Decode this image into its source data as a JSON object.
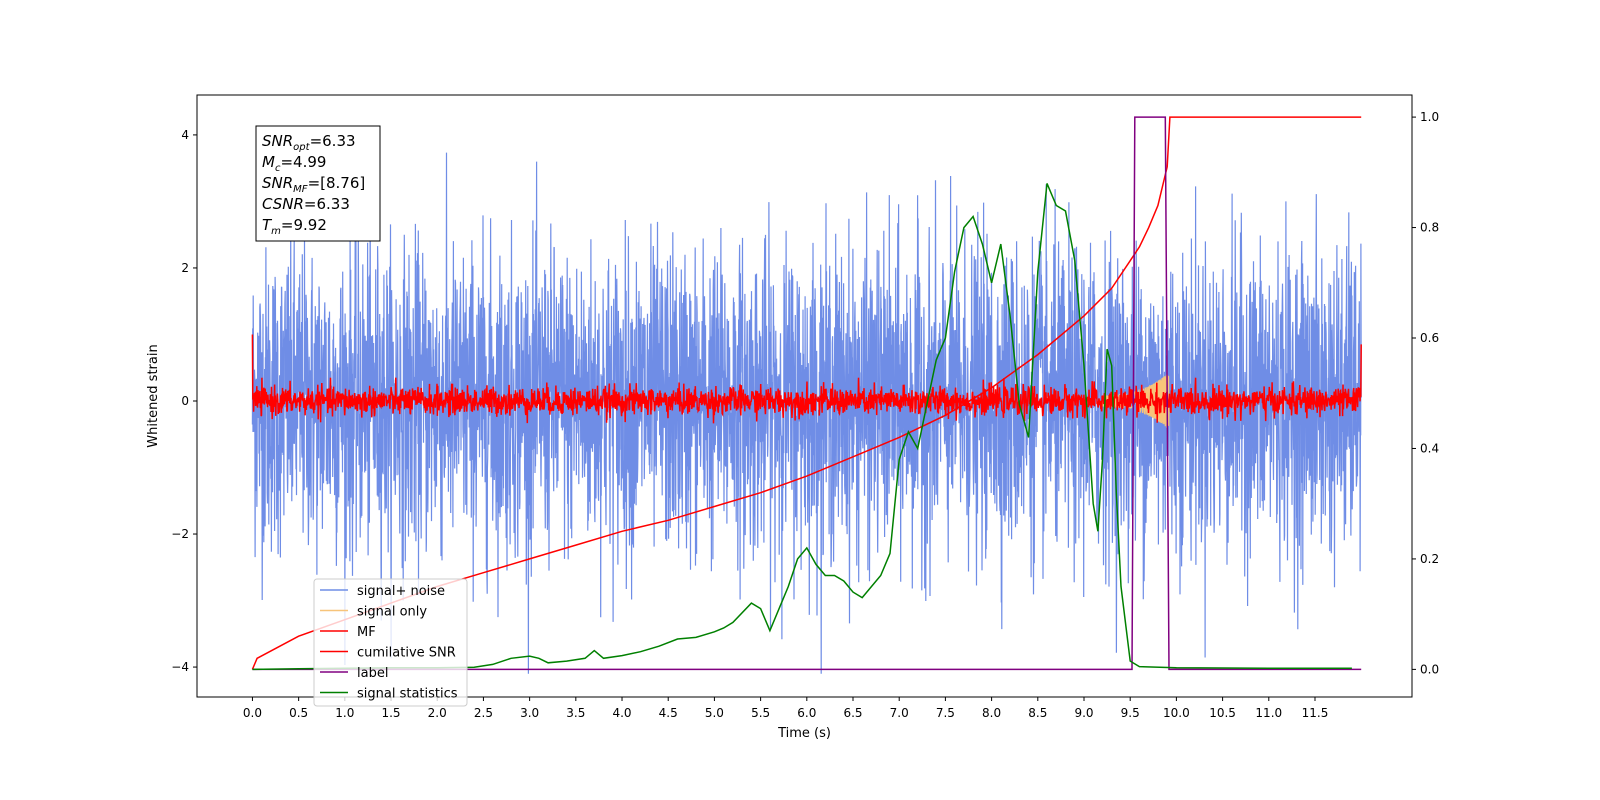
{
  "chart_data": {
    "type": "line",
    "title": "",
    "xlabel": "Time (s)",
    "ylabel": "Whitened strain",
    "ylabel_right": "",
    "xlim": [
      -0.6,
      12.55
    ],
    "ylim": [
      -4.45,
      4.6
    ],
    "ylim_right": [
      -0.05,
      1.04
    ],
    "x_ticks": [
      "0.0",
      "0.5",
      "1.0",
      "1.5",
      "2.0",
      "2.5",
      "3.0",
      "3.5",
      "4.0",
      "4.5",
      "5.0",
      "5.5",
      "6.0",
      "6.5",
      "7.0",
      "7.5",
      "8.0",
      "8.5",
      "9.0",
      "9.5",
      "10.0",
      "10.5",
      "11.0",
      "11.5"
    ],
    "y_ticks": [
      "4",
      "2",
      "0",
      "−2",
      "−4"
    ],
    "y_ticks_right": [
      "1.0",
      "0.8",
      "0.6",
      "0.4",
      "0.2",
      "0.0"
    ],
    "legend_position": "lower-left",
    "grid": false,
    "info_box": {
      "lines": [
        {
          "name": "SNR",
          "sub": "opt",
          "value": "=6.33"
        },
        {
          "name": "M",
          "sub": "c",
          "value": "=4.99"
        },
        {
          "name": "SNR",
          "sub": "MF",
          "value": "=[8.76]"
        },
        {
          "name": "CSNR",
          "sub": "",
          "value": "=6.33"
        },
        {
          "name": "T",
          "sub": "m",
          "value": "=9.92"
        }
      ]
    },
    "series": [
      {
        "name": "signal+ noise",
        "color": "#6f8de6",
        "axis": "left",
        "kind": "noise",
        "amplitude_typical": 1.2,
        "amplitude_peak": 4.1,
        "x_range": [
          0.0,
          12.0
        ]
      },
      {
        "name": "signal only",
        "color": "#f7c47a",
        "axis": "left",
        "kind": "chirp",
        "x_range": [
          9.2,
          9.92
        ],
        "peak_amplitude": 0.35
      },
      {
        "name": "MF",
        "color": "#ff0000",
        "axis": "left",
        "kind": "noise",
        "amplitude_typical": 0.12,
        "amplitude_peak": 0.35,
        "x_range": [
          0.0,
          12.0
        ],
        "endpoints": [
          1.0,
          0.85
        ]
      },
      {
        "name": "cumilative SNR",
        "color": "#ff0000",
        "axis": "right",
        "x": [
          0.0,
          0.05,
          0.5,
          1.0,
          1.5,
          2.0,
          2.5,
          3.0,
          3.5,
          4.0,
          4.5,
          5.0,
          5.5,
          6.0,
          6.5,
          7.0,
          7.5,
          8.0,
          8.5,
          9.0,
          9.3,
          9.5,
          9.6,
          9.7,
          9.8,
          9.9,
          9.93,
          12.0
        ],
        "values": [
          0.0,
          0.02,
          0.06,
          0.09,
          0.12,
          0.15,
          0.175,
          0.2,
          0.225,
          0.25,
          0.27,
          0.295,
          0.32,
          0.35,
          0.385,
          0.42,
          0.46,
          0.51,
          0.57,
          0.64,
          0.69,
          0.74,
          0.765,
          0.8,
          0.84,
          0.91,
          1.0,
          1.0
        ]
      },
      {
        "name": "label",
        "color": "#800080",
        "axis": "right",
        "x": [
          0.0,
          9.52,
          9.55,
          9.88,
          9.92,
          12.0
        ],
        "values": [
          0.0,
          0.0,
          1.0,
          1.0,
          0.0,
          0.0
        ]
      },
      {
        "name": "signal statistics",
        "color": "#008000",
        "axis": "right",
        "x": [
          0.0,
          0.5,
          1.0,
          1.5,
          2.0,
          2.4,
          2.6,
          2.8,
          3.0,
          3.1,
          3.2,
          3.4,
          3.6,
          3.7,
          3.8,
          4.0,
          4.2,
          4.4,
          4.6,
          4.8,
          5.0,
          5.1,
          5.2,
          5.4,
          5.5,
          5.6,
          5.8,
          5.9,
          6.0,
          6.1,
          6.2,
          6.3,
          6.4,
          6.5,
          6.6,
          6.8,
          6.9,
          7.0,
          7.1,
          7.2,
          7.3,
          7.4,
          7.5,
          7.6,
          7.7,
          7.8,
          7.9,
          8.0,
          8.1,
          8.2,
          8.3,
          8.4,
          8.5,
          8.6,
          8.7,
          8.8,
          8.9,
          9.0,
          9.1,
          9.15,
          9.2,
          9.25,
          9.3,
          9.35,
          9.4,
          9.5,
          9.6,
          10.0,
          11.0,
          11.9
        ],
        "values": [
          0.0,
          0.001,
          0.002,
          0.003,
          0.003,
          0.004,
          0.009,
          0.02,
          0.024,
          0.02,
          0.012,
          0.015,
          0.02,
          0.034,
          0.02,
          0.025,
          0.032,
          0.042,
          0.055,
          0.058,
          0.068,
          0.075,
          0.085,
          0.12,
          0.11,
          0.07,
          0.15,
          0.2,
          0.22,
          0.19,
          0.17,
          0.17,
          0.16,
          0.14,
          0.13,
          0.17,
          0.21,
          0.38,
          0.43,
          0.4,
          0.48,
          0.56,
          0.6,
          0.72,
          0.8,
          0.82,
          0.77,
          0.7,
          0.77,
          0.64,
          0.48,
          0.42,
          0.72,
          0.88,
          0.84,
          0.83,
          0.74,
          0.55,
          0.3,
          0.25,
          0.38,
          0.58,
          0.55,
          0.32,
          0.15,
          0.015,
          0.005,
          0.003,
          0.002,
          0.002
        ]
      }
    ]
  }
}
